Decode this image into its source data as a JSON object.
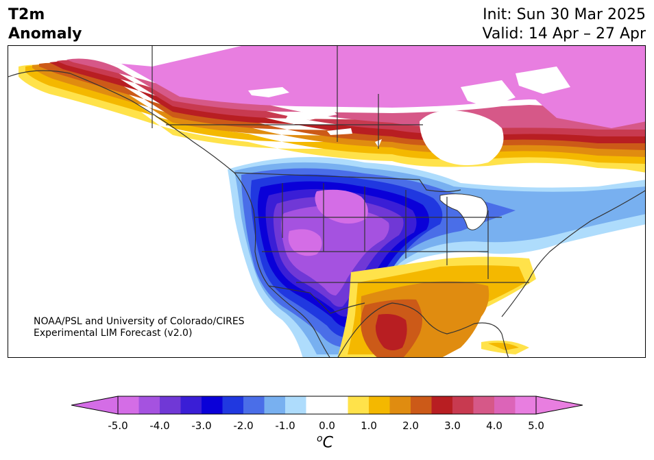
{
  "title": {
    "line1": "T2m",
    "line2": "Anomaly"
  },
  "dates": {
    "init": "Init: Sun 30 Mar 2025",
    "valid": "Valid: 14 Apr – 27 Apr"
  },
  "credit": {
    "line1": "NOAA/PSL and University of Colorado/CIRES",
    "line2": "Experimental LIM Forecast (v2.0)"
  },
  "colorbar": {
    "ticks": [
      "-5.0",
      "-4.0",
      "-3.0",
      "-2.0",
      "-1.0",
      "0.0",
      "1.0",
      "2.0",
      "3.0",
      "4.0",
      "5.0"
    ],
    "unit_base": "o",
    "unit_letter": "C",
    "range": [
      -5.0,
      5.0
    ],
    "extend": "both",
    "colors": [
      "#d46de6",
      "#a552e0",
      "#7038d6",
      "#3a1ed6",
      "#0a00d8",
      "#2038e0",
      "#4a6ee8",
      "#78b0f0",
      "#aedcfc",
      "#ffffff",
      "#ffffff",
      "#ffe24a",
      "#f4b800",
      "#e08c10",
      "#cc5a18",
      "#b81e22",
      "#c83a50",
      "#d65888",
      "#dc64b8",
      "#e87ee0"
    ]
  },
  "colors": {
    "strong_cold": "#d46de6",
    "cold": "#0a00d8",
    "neutral": "#ffffff",
    "warm": "#f4b800",
    "strong_warm": "#e87ee0",
    "coastline": "#333333"
  }
}
